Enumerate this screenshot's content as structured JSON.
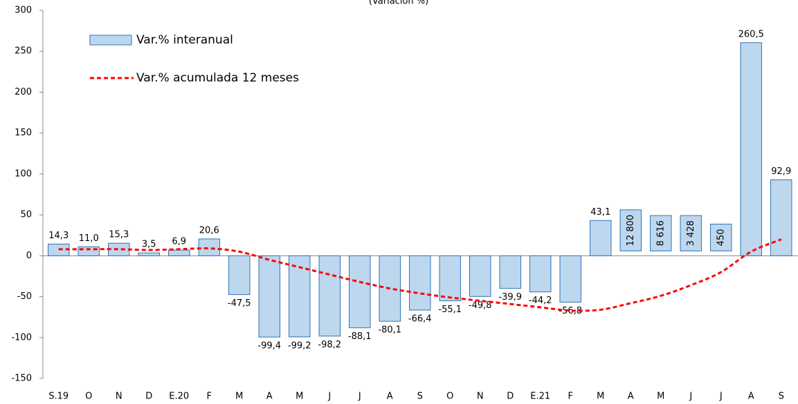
{
  "chart_data": {
    "type": "bar",
    "title": "(Variación %)",
    "categories": [
      "S.19",
      "O",
      "N",
      "D",
      "E.20",
      "F",
      "M",
      "A",
      "M",
      "J",
      "J",
      "A",
      "S",
      "O",
      "N",
      "D",
      "E.21",
      "F",
      "M",
      "A",
      "M",
      "J",
      "J",
      "A",
      "S"
    ],
    "series": [
      {
        "name": "Var.% interanual",
        "type": "bar",
        "color": "#bdd7ee",
        "stroke": "#2e75b6",
        "values": [
          14.3,
          11.0,
          15.3,
          3.5,
          6.9,
          20.6,
          -47.5,
          -99.4,
          -99.2,
          -98.2,
          -88.1,
          -80.1,
          -66.4,
          -55.1,
          -49.8,
          -39.9,
          -44.2,
          -56.8,
          43.1,
          12800,
          8616,
          3428,
          450,
          260.5,
          92.9
        ],
        "value_labels": [
          "14,3",
          "11,0",
          "15,3",
          "3,5",
          "6,9",
          "20,6",
          "-47,5",
          "-99,4",
          "-99,2",
          "-98,2",
          "-88,1",
          "-80,1",
          "-66,4",
          "-55,1",
          "-49,8",
          "-39,9",
          "-44,2",
          "-56,8",
          "43,1",
          "12 800",
          "8 616",
          "3 428",
          "450",
          "260,5",
          "92,9"
        ]
      },
      {
        "name": "Var.% acumulada 12 meses",
        "type": "line",
        "color": "#ff0000",
        "values": [
          8,
          8,
          8,
          7,
          8,
          9,
          5,
          -5,
          -14,
          -23,
          -32,
          -40,
          -46,
          -51,
          -55,
          -59,
          -63,
          -67,
          -66,
          -58,
          -49,
          -36,
          -20,
          5,
          20
        ]
      }
    ],
    "ylim": [
      -150,
      300
    ],
    "yticks": [
      -150,
      -100,
      -50,
      0,
      50,
      100,
      150,
      200,
      250,
      300
    ],
    "grid": false
  }
}
